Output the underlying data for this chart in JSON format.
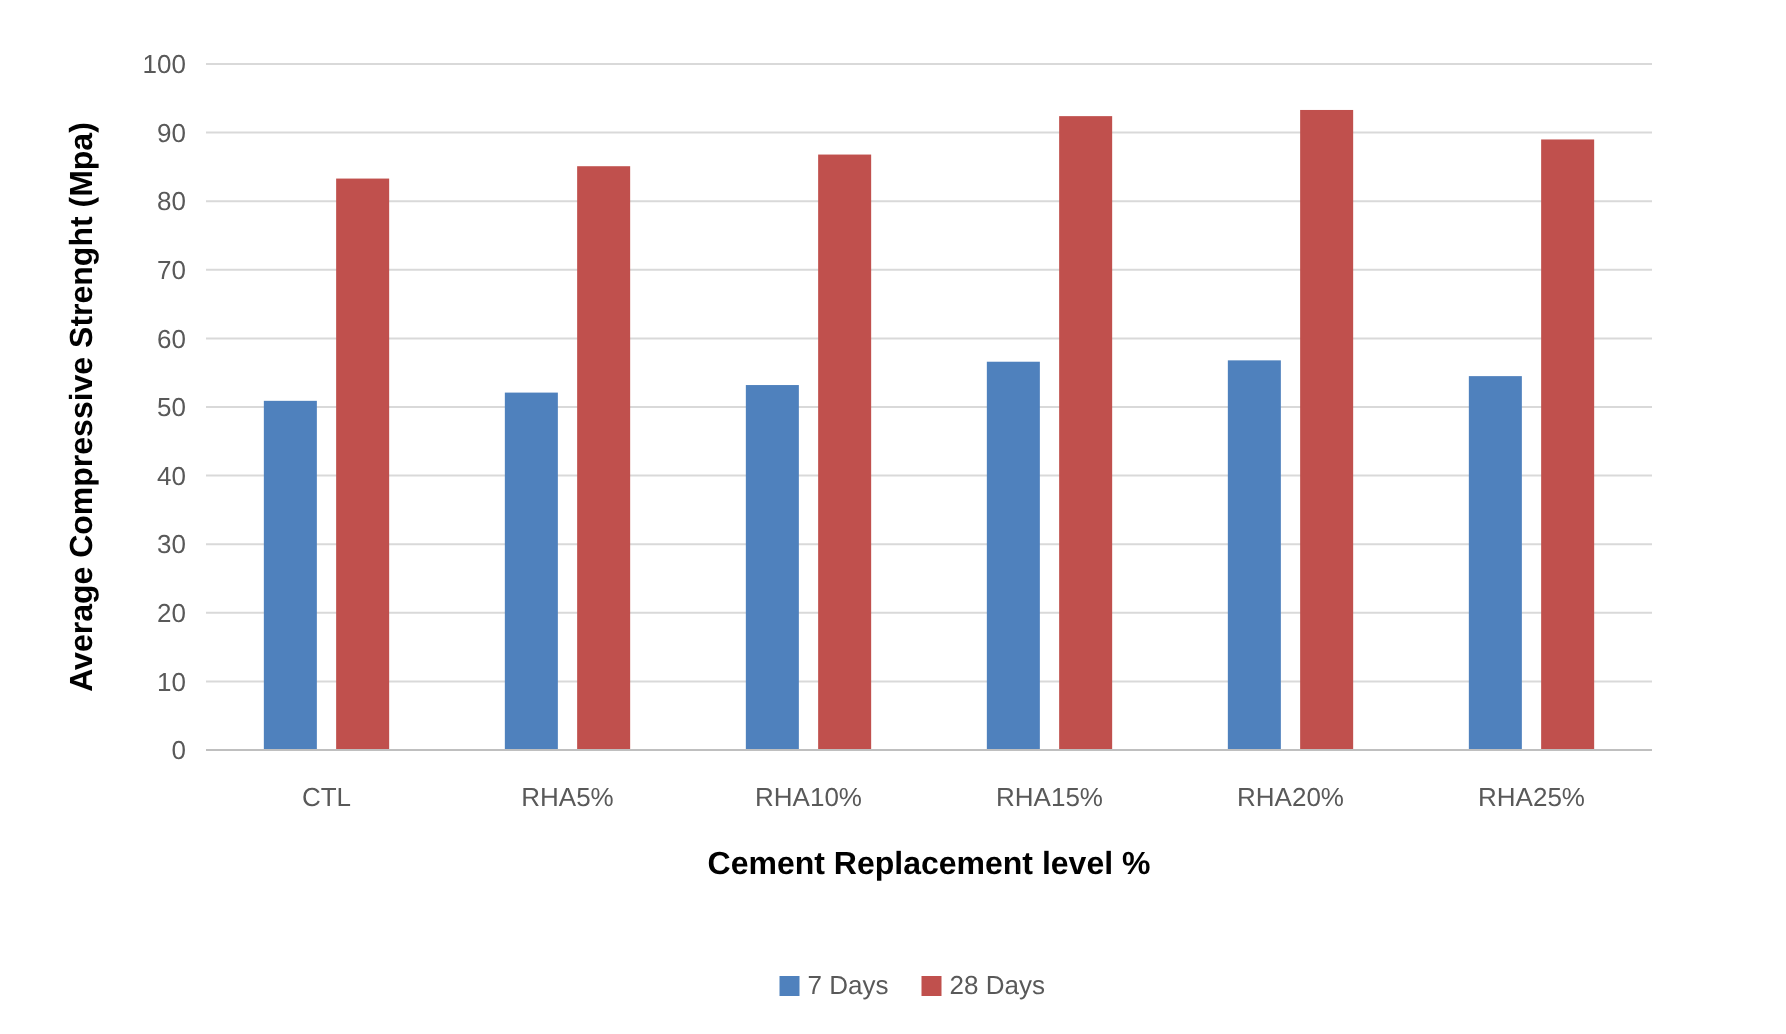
{
  "chart_data": {
    "type": "bar",
    "xlabel": "Cement Replacement level %",
    "ylabel": "Average Compressive Strenght (Mpa)",
    "categories": [
      "CTL",
      "RHA5%",
      "RHA10%",
      "RHA15%",
      "RHA20%",
      "RHA25%"
    ],
    "series": [
      {
        "name": "7 Days",
        "color": "#4f81bd",
        "values": [
          50.9,
          52.1,
          53.2,
          56.6,
          56.8,
          54.5
        ]
      },
      {
        "name": "28 Days",
        "color": "#c0504d",
        "values": [
          83.3,
          85.1,
          86.8,
          92.4,
          93.3,
          89
        ]
      }
    ],
    "ylim": [
      0,
      100
    ],
    "yticks": [
      0,
      10,
      20,
      30,
      40,
      50,
      60,
      70,
      80,
      90,
      100
    ],
    "grid": "y",
    "legend": "bottom"
  }
}
